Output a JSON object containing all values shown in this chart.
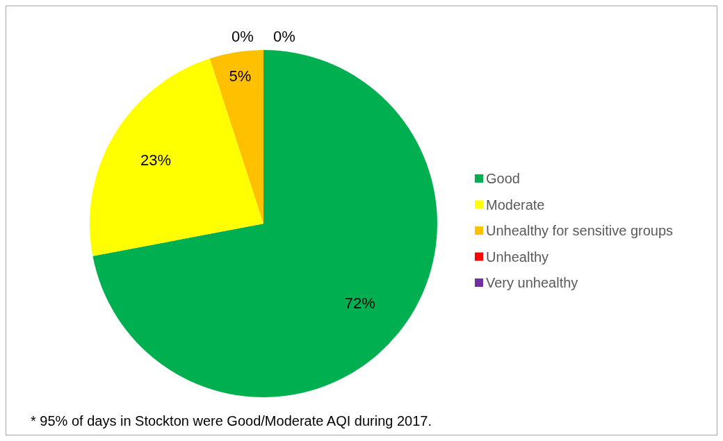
{
  "chart_data": {
    "type": "pie",
    "categories": [
      "Good",
      "Moderate",
      "Unhealthy for sensitive groups",
      "Unhealthy",
      "Very unhealthy"
    ],
    "values": [
      72,
      23,
      5,
      0,
      0
    ],
    "colors": [
      "#00b050",
      "#ffff00",
      "#ffc000",
      "#ff0000",
      "#7030a0"
    ],
    "value_labels": [
      "72%",
      "23%",
      "5%",
      "0%",
      "0%"
    ],
    "legend": "right",
    "annotations": [
      "* 95% of days in Stockton were Good/Moderate AQI during 2017."
    ]
  }
}
